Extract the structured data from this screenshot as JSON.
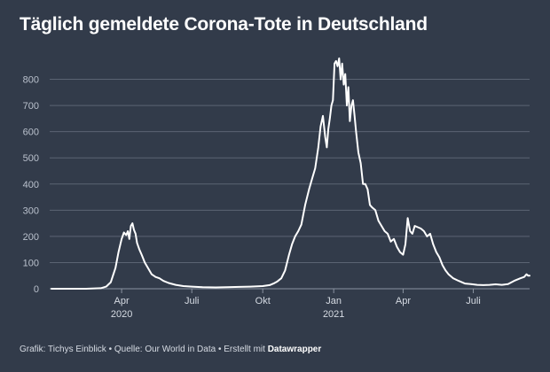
{
  "title": "Täglich gemeldete Corona-Tote in Deutschland",
  "footer": {
    "text": "Grafik: Tichys Einblick • Quelle: Our World in Data • Erstellt mit ",
    "brand": "Datawrapper"
  },
  "colors": {
    "background": "#323b4a",
    "line": "#ffffff",
    "grid": "#5b6473",
    "tick_y": "#b9c0cc"
  },
  "chart_data": {
    "type": "line",
    "title": "Täglich gemeldete Corona-Tote in Deutschland",
    "xlabel": "",
    "ylabel": "",
    "ylim": [
      0,
      900
    ],
    "xlim": [
      "2020-01-01",
      "2021-09-12"
    ],
    "yticks": [
      "0",
      "100",
      "200",
      "300",
      "400",
      "500",
      "600",
      "700",
      "800"
    ],
    "xticks": [
      {
        "date": "2020-04-01",
        "label": "Apr",
        "sub": "2020"
      },
      {
        "date": "2020-07-01",
        "label": "Juli",
        "sub": ""
      },
      {
        "date": "2020-10-01",
        "label": "Okt",
        "sub": ""
      },
      {
        "date": "2021-01-01",
        "label": "Jan",
        "sub": "2021"
      },
      {
        "date": "2021-04-01",
        "label": "Apr",
        "sub": ""
      },
      {
        "date": "2021-07-01",
        "label": "Juli",
        "sub": ""
      }
    ],
    "grid": true,
    "legend": "none",
    "series": [
      {
        "x": [
          "2020-01-01",
          "2020-02-15",
          "2020-03-05",
          "2020-03-12",
          "2020-03-18",
          "2020-03-24",
          "2020-03-28",
          "2020-04-01",
          "2020-04-04",
          "2020-04-07",
          "2020-04-09",
          "2020-04-11",
          "2020-04-13",
          "2020-04-15",
          "2020-04-17",
          "2020-04-19",
          "2020-04-21",
          "2020-04-24",
          "2020-04-27",
          "2020-05-01",
          "2020-05-05",
          "2020-05-10",
          "2020-05-15",
          "2020-05-20",
          "2020-05-25",
          "2020-06-01",
          "2020-06-10",
          "2020-06-20",
          "2020-07-01",
          "2020-07-15",
          "2020-08-01",
          "2020-08-15",
          "2020-09-01",
          "2020-09-15",
          "2020-10-01",
          "2020-10-10",
          "2020-10-15",
          "2020-10-20",
          "2020-10-25",
          "2020-10-30",
          "2020-11-04",
          "2020-11-08",
          "2020-11-12",
          "2020-11-16",
          "2020-11-20",
          "2020-11-25",
          "2020-11-30",
          "2020-12-04",
          "2020-12-08",
          "2020-12-12",
          "2020-12-15",
          "2020-12-18",
          "2020-12-21",
          "2020-12-23",
          "2020-12-25",
          "2020-12-27",
          "2020-12-29",
          "2020-12-31",
          "2021-01-02",
          "2021-01-04",
          "2021-01-06",
          "2021-01-08",
          "2021-01-10",
          "2021-01-12",
          "2021-01-14",
          "2021-01-16",
          "2021-01-18",
          "2021-01-20",
          "2021-01-22",
          "2021-01-24",
          "2021-01-26",
          "2021-01-28",
          "2021-01-30",
          "2021-02-02",
          "2021-02-05",
          "2021-02-08",
          "2021-02-11",
          "2021-02-14",
          "2021-02-17",
          "2021-02-20",
          "2021-02-24",
          "2021-02-28",
          "2021-03-04",
          "2021-03-08",
          "2021-03-12",
          "2021-03-16",
          "2021-03-20",
          "2021-03-24",
          "2021-03-28",
          "2021-04-01",
          "2021-04-04",
          "2021-04-07",
          "2021-04-10",
          "2021-04-13",
          "2021-04-16",
          "2021-04-20",
          "2021-04-24",
          "2021-04-28",
          "2021-05-02",
          "2021-05-06",
          "2021-05-10",
          "2021-05-14",
          "2021-05-18",
          "2021-05-22",
          "2021-05-26",
          "2021-05-30",
          "2021-06-05",
          "2021-06-12",
          "2021-06-20",
          "2021-06-28",
          "2021-07-06",
          "2021-07-14",
          "2021-07-22",
          "2021-07-30",
          "2021-08-07",
          "2021-08-15",
          "2021-08-23",
          "2021-08-31",
          "2021-09-05",
          "2021-09-08",
          "2021-09-10",
          "2021-09-12"
        ],
        "y": [
          0,
          0,
          2,
          8,
          25,
          80,
          140,
          190,
          215,
          205,
          220,
          190,
          240,
          250,
          225,
          210,
          175,
          150,
          130,
          100,
          80,
          55,
          45,
          40,
          30,
          22,
          15,
          10,
          8,
          6,
          5,
          6,
          7,
          8,
          10,
          14,
          20,
          28,
          40,
          70,
          130,
          170,
          200,
          220,
          245,
          320,
          380,
          420,
          460,
          540,
          620,
          660,
          580,
          540,
          610,
          650,
          700,
          720,
          860,
          870,
          850,
          880,
          800,
          860,
          780,
          820,
          700,
          770,
          640,
          700,
          720,
          660,
          600,
          520,
          480,
          400,
          400,
          380,
          320,
          310,
          300,
          260,
          240,
          220,
          210,
          180,
          190,
          160,
          140,
          130,
          170,
          270,
          220,
          210,
          240,
          235,
          230,
          220,
          200,
          210,
          170,
          140,
          120,
          90,
          70,
          55,
          40,
          30,
          20,
          18,
          15,
          14,
          15,
          17,
          15,
          18,
          30,
          40,
          45,
          55,
          50,
          50
        ]
      }
    ]
  }
}
